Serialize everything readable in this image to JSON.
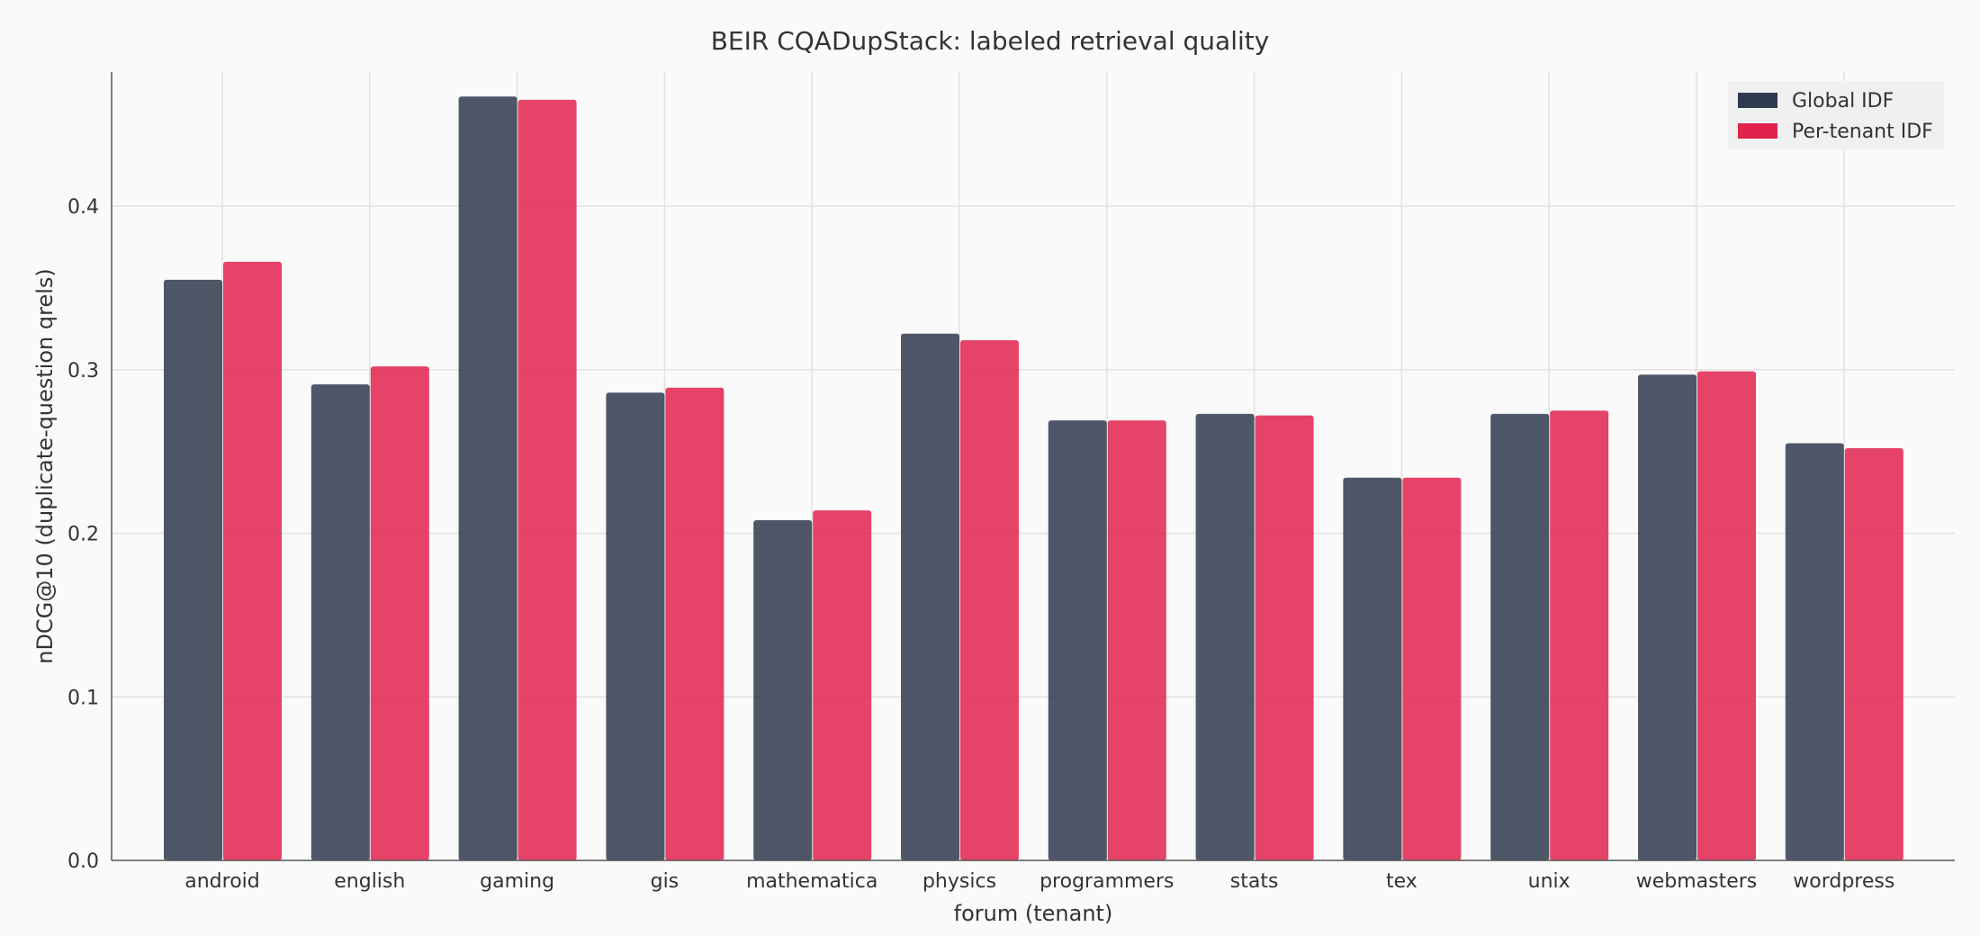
{
  "chart_data": {
    "type": "bar",
    "title": "BEIR CQADupStack: labeled retrieval quality",
    "xlabel": "forum (tenant)",
    "ylabel": "nDCG@10 (duplicate-question qrels)",
    "ylim": [
      0,
      0.482
    ],
    "yticks": [
      "0.0",
      "0.1",
      "0.2",
      "0.3",
      "0.4"
    ],
    "categories": [
      "android",
      "english",
      "gaming",
      "gis",
      "mathematica",
      "physics",
      "programmers",
      "stats",
      "tex",
      "unix",
      "webmasters",
      "wordpress"
    ],
    "series": [
      {
        "name": "Global IDF",
        "color": "#2e3a4e",
        "values": [
          0.355,
          0.291,
          0.467,
          0.286,
          0.208,
          0.322,
          0.269,
          0.273,
          0.234,
          0.273,
          0.297,
          0.255
        ]
      },
      {
        "name": "Per-tenant IDF",
        "color": "#e0224d",
        "values": [
          0.366,
          0.302,
          0.465,
          0.289,
          0.214,
          0.318,
          0.269,
          0.272,
          0.234,
          0.275,
          0.299,
          0.252
        ]
      }
    ],
    "grid": true,
    "legend_position": "top-right"
  }
}
